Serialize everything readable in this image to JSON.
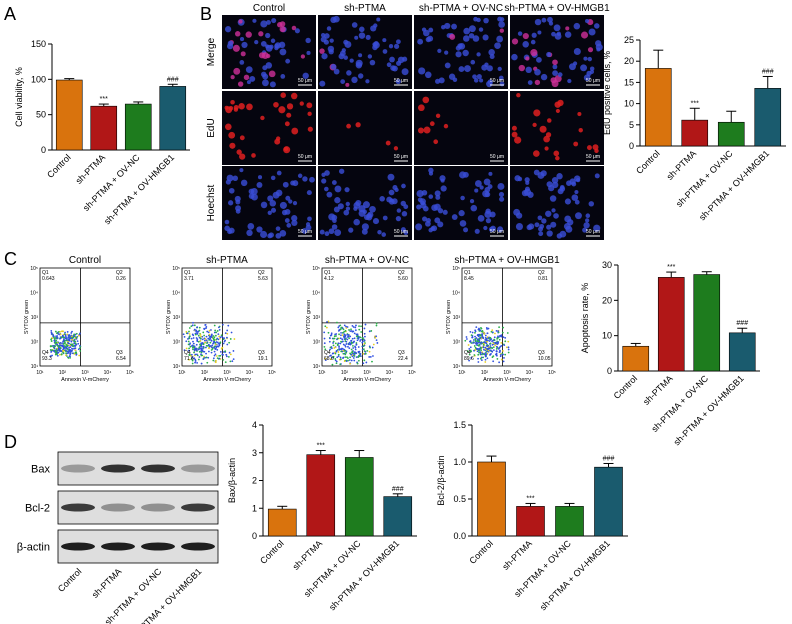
{
  "colors": {
    "control": "#D9730D",
    "sh_ptma": "#B11717",
    "ov_nc": "#1E7C1E",
    "ov_hmgb1": "#1A5B6E"
  },
  "panel_labels": {
    "A": "A",
    "B": "B",
    "C": "C",
    "D": "D"
  },
  "chart_data": [
    {
      "id": "A",
      "type": "bar",
      "categories": [
        "Control",
        "sh-PTMA",
        "sh-PTMA + OV-NC",
        "sh-PTMA + OV-HMGB1"
      ],
      "values": [
        99,
        62,
        65,
        90
      ],
      "errors": [
        2,
        3,
        3,
        3
      ],
      "annotations": [
        "",
        "***",
        "",
        "###"
      ],
      "ylabel": "Cell viability, %",
      "ylim": [
        0,
        150
      ],
      "yticks": [
        0,
        50,
        100,
        150
      ]
    },
    {
      "id": "B",
      "type": "bar",
      "categories": [
        "Control",
        "sh-PTMA",
        "sh-PTMA + OV-NC",
        "sh-PTMA + OV-HMGB1"
      ],
      "values": [
        18.3,
        6.1,
        5.6,
        13.6
      ],
      "errors": [
        4.3,
        2.8,
        2.6,
        2.8
      ],
      "annotations": [
        "",
        "***",
        "",
        "###"
      ],
      "ylabel": "EdU positive cells, %",
      "ylim": [
        0,
        25
      ],
      "yticks": [
        0,
        5,
        10,
        15,
        20,
        25
      ]
    },
    {
      "id": "C",
      "type": "bar",
      "categories": [
        "Control",
        "sh-PTMA",
        "sh-PTMA + OV-NC",
        "sh-PTMA + OV-HMGB1"
      ],
      "values": [
        7,
        26.5,
        27.3,
        10.8
      ],
      "errors": [
        0.8,
        1.5,
        0.8,
        1.3
      ],
      "annotations": [
        "",
        "***",
        "",
        "###"
      ],
      "ylabel": "Apoptosis rate, %",
      "ylim": [
        0,
        30
      ],
      "yticks": [
        0,
        10,
        20,
        30
      ]
    },
    {
      "id": "D1",
      "type": "bar",
      "categories": [
        "Control",
        "sh-PTMA",
        "sh-PTMA + OV-NC",
        "sh-PTMA + OV-HMGB1"
      ],
      "values": [
        0.97,
        2.93,
        2.83,
        1.42
      ],
      "errors": [
        0.1,
        0.15,
        0.25,
        0.1
      ],
      "annotations": [
        "",
        "***",
        "",
        "###"
      ],
      "ylabel": "Bax/β-actin",
      "ylim": [
        0,
        4
      ],
      "yticks": [
        0,
        1,
        2,
        3,
        4
      ]
    },
    {
      "id": "D2",
      "type": "bar",
      "categories": [
        "Control",
        "sh-PTMA",
        "sh-PTMA + OV-NC",
        "sh-PTMA + OV-HMGB1"
      ],
      "values": [
        1.0,
        0.4,
        0.4,
        0.93
      ],
      "errors": [
        0.08,
        0.04,
        0.04,
        0.05
      ],
      "annotations": [
        "",
        "***",
        "",
        "###"
      ],
      "ylabel": "Bcl-2/β-actin",
      "ylim": [
        0,
        1.5
      ],
      "yticks": [
        0.0,
        0.5,
        1.0,
        1.5
      ]
    }
  ],
  "microscopy": {
    "columns": [
      "Control",
      "sh-PTMA",
      "sh-PTMA + OV-NC",
      "sh-PTMA + OV-HMGB1"
    ],
    "rows": [
      "Merge",
      "EdU",
      "Hoechst"
    ],
    "scale_bar": "50 μm"
  },
  "flow": {
    "panels": [
      {
        "title": "Control",
        "q1": "Q1\n0.643",
        "q2": "Q2\n0.26",
        "q3": "Q3\n6.54",
        "q4": "Q4\n93.3"
      },
      {
        "title": "sh-PTMA",
        "q1": "Q1\n3.71",
        "q2": "Q2\n5.63",
        "q3": "Q3\n19.1",
        "q4": "Q4\n71.6"
      },
      {
        "title": "sh-PTMA + OV-NC",
        "q1": "Q1\n4.12",
        "q2": "Q2\n5.60",
        "q3": "Q3\n22.4",
        "q4": "Q4\n68.0"
      },
      {
        "title": "sh-PTMA + OV-HMGB1",
        "q1": "Q1\n8.45",
        "q2": "Q2\n0.81",
        "q3": "Q3\n10.05",
        "q4": "Q4\n89.6"
      }
    ],
    "xlabel": "Annexin V-mCherry",
    "ylabel": "SYTOX green",
    "xticks": [
      "10¹",
      "10²",
      "10³",
      "10⁴",
      "10⁵"
    ],
    "yticks": [
      "10¹",
      "10²",
      "10³",
      "10⁴",
      "10⁵"
    ]
  },
  "western": {
    "bands": [
      "Bax",
      "Bcl-2",
      "β-actin"
    ],
    "lanes": [
      "Control",
      "sh-PTMA",
      "sh-PTMA + OV-NC",
      "sh-PTMA + OV-HMGB1"
    ]
  }
}
